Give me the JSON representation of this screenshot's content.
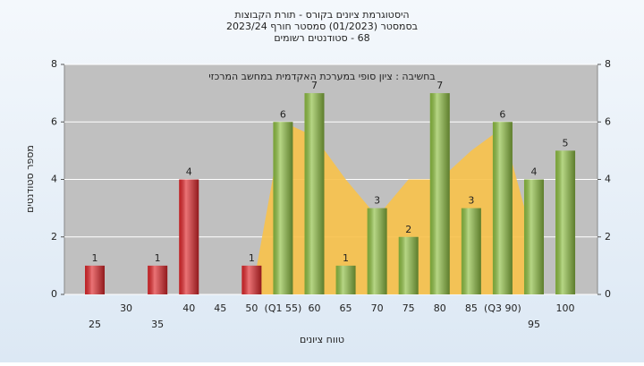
{
  "chart_data": {
    "type": "bar",
    "title": [
      "היסטוגרמת ציונים בקורס - תורת הקבוצות",
      "בסמסטר (01/2023) סמסטר חורף 2023/24",
      "68 - סטודנטים רשומים"
    ],
    "annotation": "בחשיבה : ציון סופי במערכת האקדמית במחשב המרכזי",
    "x_label": "טווח ציונים",
    "y_label": "מספר סטודנטים",
    "categories": [
      "25",
      "30",
      "35",
      "40",
      "45",
      "50",
      "(Q1 55)",
      "60",
      "65",
      "70",
      "75",
      "80",
      "85",
      "(Q3 90)",
      "95",
      "100"
    ],
    "series": [
      {
        "values": [
          1,
          null,
          1,
          4,
          null,
          1,
          6,
          7,
          1,
          3,
          2,
          7,
          3,
          6,
          4,
          5
        ],
        "colors": [
          "#e0282c",
          null,
          "#e0282c",
          "#e0282c",
          null,
          "#e0282c",
          "#8fc043",
          "#8fc043",
          "#8fc043",
          "#8fc043",
          "#8fc043",
          "#8fc043",
          "#8fc043",
          "#8fc043",
          "#8fc043",
          "#8fc043"
        ]
      }
    ],
    "area": {
      "color": "#f8c24a",
      "values": [
        null,
        null,
        null,
        null,
        null,
        0,
        6,
        5.5,
        4,
        2.7,
        4,
        4,
        5,
        5.8,
        1.8,
        null
      ]
    },
    "ylim": [
      0,
      8
    ],
    "yticks": [
      0,
      2,
      4,
      6,
      8
    ],
    "y2lim": [
      0,
      8
    ],
    "y2ticks": [
      0,
      2,
      4,
      6,
      8
    ],
    "grid": true
  }
}
